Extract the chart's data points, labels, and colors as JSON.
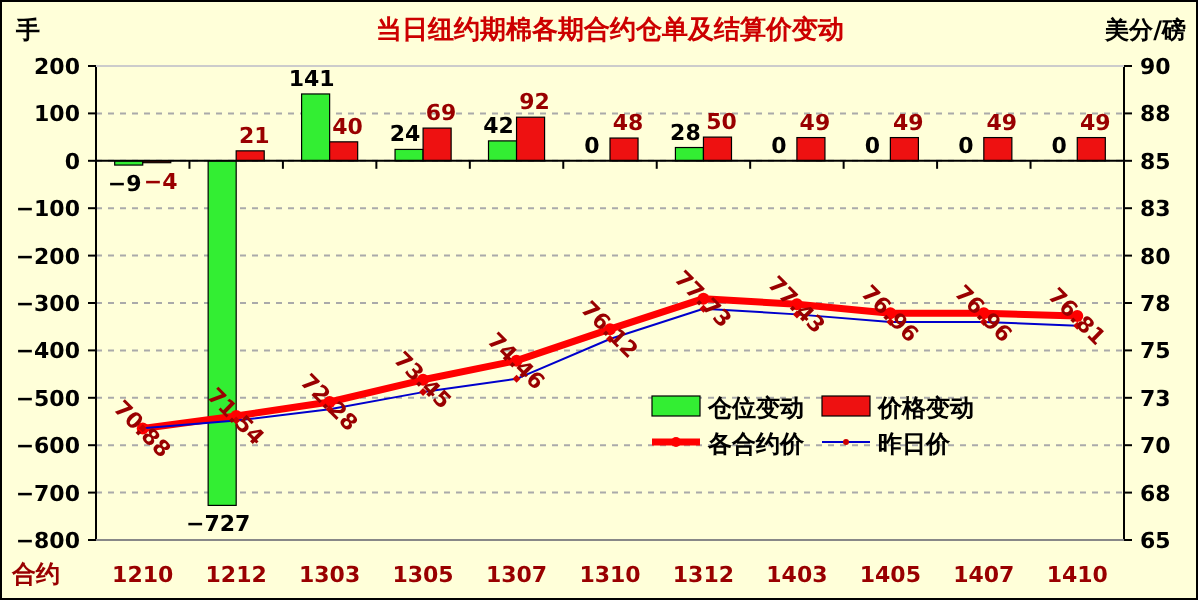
{
  "chart_data": {
    "type": "bar",
    "title": "当日纽约期棉各期合约仓单及结算价变动",
    "ylabel": "手",
    "y2label": "美分/磅",
    "xlabel": "合约",
    "categories": [
      "1210",
      "1212",
      "1303",
      "1305",
      "1307",
      "1310",
      "1312",
      "1403",
      "1405",
      "1407",
      "1410"
    ],
    "series": [
      {
        "name": "仓位变动",
        "color": "#33ee33",
        "values": [
          -9,
          -727,
          141,
          24,
          42,
          0,
          28,
          0,
          0,
          0,
          0
        ],
        "value_labels": [
          "−9",
          "−727",
          "141",
          "24",
          "42",
          "0",
          "28",
          "0",
          "0",
          "0",
          "0"
        ]
      },
      {
        "name": "价格变动",
        "color": "#ee1111",
        "values": [
          -4,
          21,
          40,
          69,
          92,
          48,
          50,
          49,
          49,
          49,
          49
        ],
        "value_labels": [
          "−4",
          "21",
          "40",
          "69",
          "92",
          "48",
          "50",
          "49",
          "49",
          "49",
          "49"
        ]
      },
      {
        "name": "各合约价",
        "type": "line",
        "axis": "y2",
        "color": "#ff0000",
        "marker": "circle",
        "values": [
          70.88,
          71.54,
          72.28,
          73.45,
          74.46,
          76.12,
          77.73,
          77.43,
          76.96,
          76.96,
          76.81
        ],
        "value_labels": [
          "70.88",
          "71.54",
          "72.28",
          "73.45",
          "74.46",
          "76.12",
          "77.73",
          "77.43",
          "76.96",
          "76.96",
          "76.81"
        ]
      },
      {
        "name": "昨日价",
        "type": "line",
        "axis": "y2",
        "color": "#0000cc",
        "marker": "diamond",
        "values": [
          70.9,
          71.3,
          71.9,
          72.8,
          73.5,
          75.6,
          77.2,
          76.9,
          76.5,
          76.5,
          76.3
        ]
      }
    ],
    "ylim": [
      -800,
      200
    ],
    "yticks": [
      -800,
      -700,
      -600,
      -500,
      -400,
      -300,
      -200,
      -100,
      0,
      100,
      200
    ],
    "y2lim": [
      65,
      90
    ],
    "y2ticks": [
      65,
      {
        "value": 67.5,
        "label": "68"
      },
      70,
      {
        "value": 72.5,
        "label": "73"
      },
      75,
      {
        "value": 77.5,
        "label": "78"
      },
      80,
      {
        "value": 82.5,
        "label": "83"
      },
      85,
      {
        "value": 87.5,
        "label": "88"
      },
      90
    ],
    "grid": "y",
    "legend": "bottom right"
  }
}
